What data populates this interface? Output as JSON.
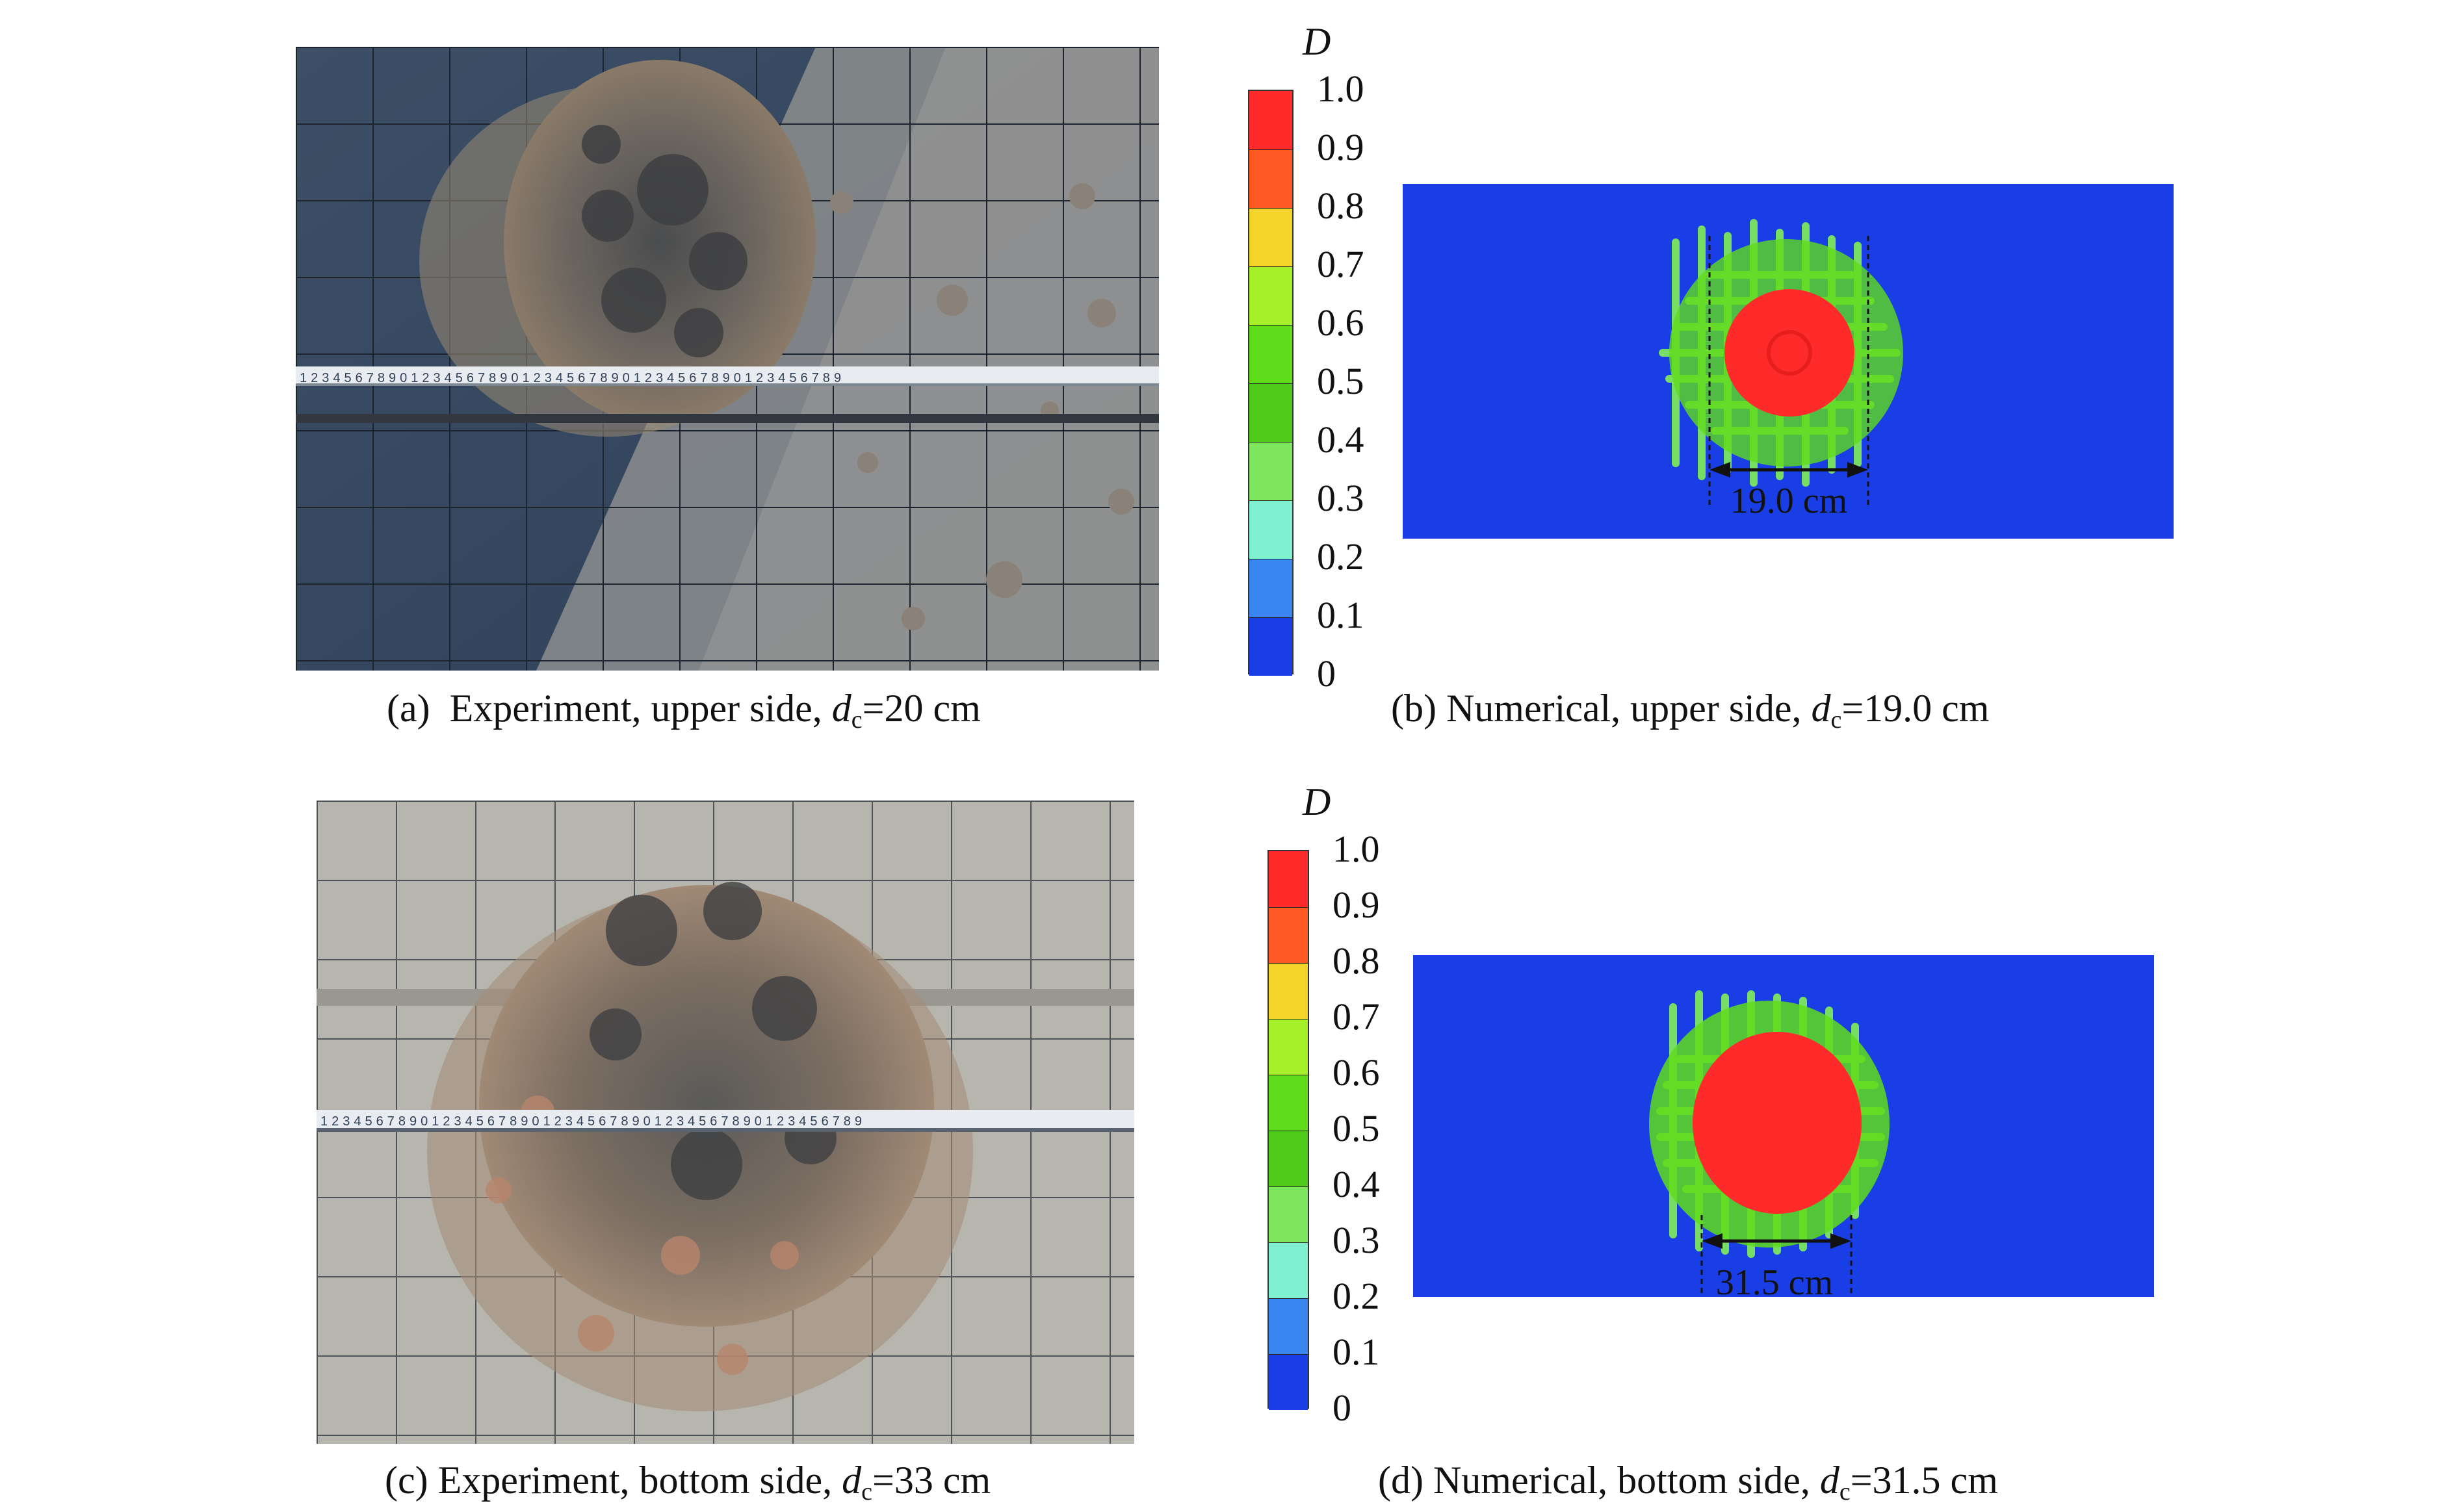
{
  "legend": {
    "symbol": "D",
    "ticks": [
      "1.0",
      "0.9",
      "0.8",
      "0.7",
      "0.6",
      "0.5",
      "0.4",
      "0.3",
      "0.2",
      "0.1",
      "0"
    ],
    "colors": [
      "#ff2a2a",
      "#ff5a24",
      "#f4d428",
      "#a6f02a",
      "#5fdc1a",
      "#4fcc1a",
      "#7ee65e",
      "#7ff0d0",
      "#3a86f0",
      "#1a3ee6"
    ]
  },
  "panels": {
    "a": {
      "letter": "(a)",
      "text": "Experiment, upper side, ",
      "sym": "d",
      "sub": "c",
      "value": "=20 cm"
    },
    "b": {
      "letter": "(b)",
      "text": "Numerical, upper side, ",
      "sym": "d",
      "sub": "c",
      "value": "=19.0 cm",
      "dimension": "19.0 cm"
    },
    "c": {
      "letter": "(c)",
      "text": "Experiment, bottom side, ",
      "sym": "d",
      "sub": "c",
      "value": "=33 cm"
    },
    "d": {
      "letter": "(d)",
      "text": "Numerical, bottom side, ",
      "sym": "d",
      "sub": "c",
      "value": "=31.5 cm",
      "dimension": "31.5 cm"
    }
  },
  "ruler_digits": "1234567890123456789012345678901234567890123456789"
}
